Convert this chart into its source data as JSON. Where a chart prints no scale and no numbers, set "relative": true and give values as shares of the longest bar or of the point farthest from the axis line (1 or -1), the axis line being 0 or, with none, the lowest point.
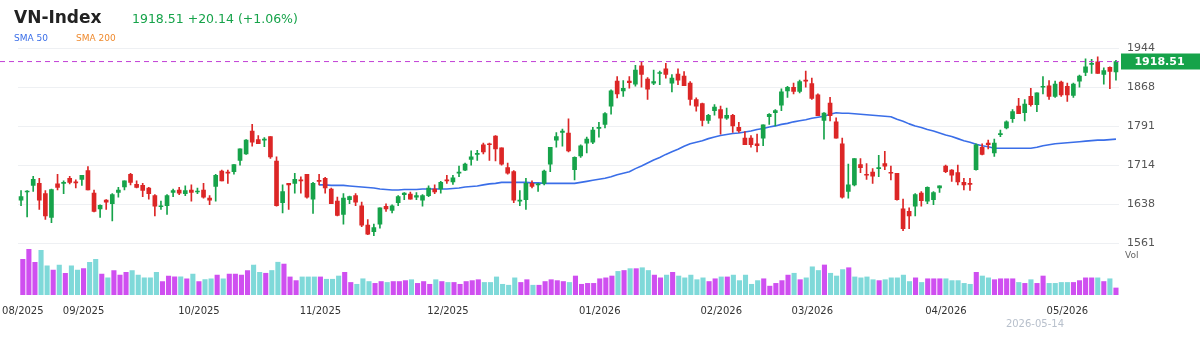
{
  "chart_data": [
    {
      "type": "candlestick",
      "title": "VN-Index",
      "subtitle": "1918.51 +20.14 (+1.06%)",
      "categories": [
        null,
        null,
        null,
        null,
        null,
        null,
        null,
        null,
        null,
        null,
        null,
        null,
        null,
        null,
        null,
        null,
        null,
        null,
        null,
        null,
        null,
        null,
        null,
        null,
        null,
        null,
        null,
        null,
        null,
        null,
        null,
        null,
        null,
        null,
        null,
        null,
        null,
        null,
        null,
        null,
        null,
        null,
        null,
        null,
        null,
        null,
        null,
        null,
        null,
        null,
        null,
        null,
        null,
        null,
        null,
        null,
        null,
        null,
        null,
        null,
        null,
        null,
        null,
        null,
        null,
        null,
        null,
        null,
        null,
        null,
        null,
        null,
        null,
        null,
        null,
        null,
        null,
        null,
        null,
        null,
        null,
        null,
        null,
        null,
        null,
        null,
        null,
        null,
        null,
        null,
        null,
        null,
        null,
        null,
        null,
        null,
        null,
        null,
        null,
        null,
        null,
        null,
        null,
        null,
        null,
        null,
        null,
        null,
        null,
        null,
        null,
        null,
        null,
        null,
        null,
        null,
        null,
        null,
        null,
        null,
        null,
        null,
        null,
        null,
        null,
        null,
        null,
        null,
        null,
        null,
        null,
        null,
        null,
        null,
        null,
        null,
        null,
        null,
        null,
        null,
        null,
        null,
        null,
        null,
        null,
        null,
        null,
        null,
        null,
        null,
        null,
        null,
        null,
        null,
        null,
        null,
        null,
        null,
        null,
        null,
        null,
        null,
        null,
        null,
        null,
        null,
        null,
        null,
        null,
        null,
        null,
        null,
        null,
        null,
        null,
        null,
        null,
        null,
        null,
        null,
        null
      ],
      "ohlc": [
        [
          1646,
          1665,
          1635,
          1653
        ],
        [
          1662,
          1665,
          1613,
          1663
        ],
        [
          1675,
          1693,
          1663,
          1687
        ],
        [
          1679,
          1689,
          1628,
          1646
        ],
        [
          1659,
          1665,
          1608,
          1615
        ],
        [
          1612,
          1668,
          1602,
          1667
        ],
        [
          1678,
          1697,
          1666,
          1671
        ],
        [
          1679,
          1684,
          1659,
          1681
        ],
        [
          1689,
          1693,
          1678,
          1681
        ],
        [
          1681,
          1686,
          1670,
          1680
        ],
        [
          1687,
          1695,
          1675,
          1695
        ],
        [
          1704,
          1712,
          1666,
          1666
        ],
        [
          1660,
          1666,
          1623,
          1624
        ],
        [
          1629,
          1637,
          1612,
          1636
        ],
        [
          1646,
          1647,
          1628,
          1642
        ],
        [
          1639,
          1659,
          1605,
          1657
        ],
        [
          1661,
          1671,
          1652,
          1666
        ],
        [
          1672,
          1684,
          1666,
          1684
        ],
        [
          1697,
          1699,
          1676,
          1681
        ],
        [
          1677,
          1684,
          1670,
          1671
        ],
        [
          1675,
          1679,
          1653,
          1665
        ],
        [
          1670,
          1671,
          1648,
          1659
        ],
        [
          1655,
          1657,
          1615,
          1634
        ],
        [
          1633,
          1644,
          1628,
          1634
        ],
        [
          1635,
          1657,
          1618,
          1655
        ],
        [
          1661,
          1668,
          1653,
          1665
        ],
        [
          1666,
          1671,
          1657,
          1660
        ],
        [
          1659,
          1674,
          1655,
          1665
        ],
        [
          1666,
          1676,
          1644,
          1661
        ],
        [
          1662,
          1670,
          1659,
          1664
        ],
        [
          1666,
          1679,
          1650,
          1652
        ],
        [
          1650,
          1655,
          1637,
          1646
        ],
        [
          1673,
          1697,
          1644,
          1695
        ],
        [
          1703,
          1705,
          1684,
          1684
        ],
        [
          1701,
          1705,
          1679,
          1699
        ],
        [
          1702,
          1716,
          1697,
          1716
        ],
        [
          1724,
          1747,
          1715,
          1747
        ],
        [
          1737,
          1765,
          1736,
          1764
        ],
        [
          1782,
          1795,
          1752,
          1760
        ],
        [
          1765,
          1773,
          1757,
          1757
        ],
        [
          1764,
          1769,
          1751,
          1766
        ],
        [
          1771,
          1771,
          1728,
          1731
        ],
        [
          1723,
          1731,
          1634,
          1635
        ],
        [
          1641,
          1676,
          1621,
          1663
        ],
        [
          1679,
          1679,
          1628,
          1676
        ],
        [
          1679,
          1699,
          1660,
          1687
        ],
        [
          1685,
          1692,
          1660,
          1684
        ],
        [
          1697,
          1697,
          1650,
          1652
        ],
        [
          1648,
          1681,
          1620,
          1679
        ],
        [
          1684,
          1697,
          1676,
          1683
        ],
        [
          1689,
          1691,
          1660,
          1670
        ],
        [
          1668,
          1670,
          1639,
          1639
        ],
        [
          1644,
          1652,
          1615,
          1616
        ],
        [
          1618,
          1659,
          1599,
          1650
        ],
        [
          1647,
          1654,
          1639,
          1653
        ],
        [
          1655,
          1659,
          1635,
          1642
        ],
        [
          1635,
          1642,
          1594,
          1597
        ],
        [
          1597,
          1608,
          1578,
          1579
        ],
        [
          1584,
          1599,
          1576,
          1592
        ],
        [
          1599,
          1631,
          1591,
          1631
        ],
        [
          1634,
          1639,
          1624,
          1629
        ],
        [
          1626,
          1637,
          1621,
          1635
        ],
        [
          1641,
          1655,
          1635,
          1653
        ],
        [
          1657,
          1661,
          1647,
          1660
        ],
        [
          1658,
          1662,
          1648,
          1648
        ],
        [
          1652,
          1661,
          1647,
          1655
        ],
        [
          1646,
          1657,
          1634,
          1655
        ],
        [
          1655,
          1674,
          1653,
          1670
        ],
        [
          1668,
          1676,
          1659,
          1662
        ],
        [
          1668,
          1683,
          1660,
          1681
        ],
        [
          1686,
          1695,
          1679,
          1684
        ],
        [
          1682,
          1695,
          1677,
          1690
        ],
        [
          1699,
          1713,
          1692,
          1701
        ],
        [
          1705,
          1719,
          1704,
          1717
        ],
        [
          1726,
          1743,
          1715,
          1731
        ],
        [
          1736,
          1744,
          1724,
          1737
        ],
        [
          1755,
          1758,
          1737,
          1741
        ],
        [
          1757,
          1758,
          1724,
          1755
        ],
        [
          1772,
          1773,
          1723,
          1747
        ],
        [
          1749,
          1749,
          1715,
          1717
        ],
        [
          1710,
          1719,
          1697,
          1699
        ],
        [
          1702,
          1704,
          1641,
          1646
        ],
        [
          1644,
          1665,
          1635,
          1646
        ],
        [
          1647,
          1689,
          1628,
          1679
        ],
        [
          1679,
          1684,
          1670,
          1673
        ],
        [
          1676,
          1679,
          1663,
          1678
        ],
        [
          1679,
          1705,
          1676,
          1703
        ],
        [
          1717,
          1750,
          1702,
          1750
        ],
        [
          1764,
          1779,
          1750,
          1771
        ],
        [
          1779,
          1786,
          1752,
          1782
        ],
        [
          1778,
          1806,
          1741,
          1743
        ],
        [
          1706,
          1731,
          1686,
          1730
        ],
        [
          1733,
          1755,
          1730,
          1753
        ],
        [
          1758,
          1770,
          1739,
          1766
        ],
        [
          1760,
          1789,
          1757,
          1784
        ],
        [
          1787,
          1799,
          1770,
          1789
        ],
        [
          1795,
          1818,
          1788,
          1816
        ],
        [
          1831,
          1863,
          1815,
          1861
        ],
        [
          1880,
          1889,
          1847,
          1855
        ],
        [
          1861,
          1881,
          1850,
          1866
        ],
        [
          1880,
          1889,
          1866,
          1877
        ],
        [
          1874,
          1911,
          1870,
          1902
        ],
        [
          1910,
          1918,
          1868,
          1893
        ],
        [
          1884,
          1887,
          1844,
          1864
        ],
        [
          1876,
          1902,
          1873,
          1879
        ],
        [
          1895,
          1900,
          1873,
          1897
        ],
        [
          1904,
          1915,
          1886,
          1893
        ],
        [
          1876,
          1893,
          1859,
          1886
        ],
        [
          1894,
          1904,
          1873,
          1882
        ],
        [
          1890,
          1899,
          1871,
          1871
        ],
        [
          1876,
          1879,
          1833,
          1844
        ],
        [
          1844,
          1847,
          1821,
          1831
        ],
        [
          1836,
          1837,
          1792,
          1803
        ],
        [
          1803,
          1815,
          1797,
          1813
        ],
        [
          1822,
          1834,
          1813,
          1829
        ],
        [
          1824,
          1831,
          1776,
          1807
        ],
        [
          1807,
          1827,
          1805,
          1813
        ],
        [
          1813,
          1815,
          1779,
          1792
        ],
        [
          1789,
          1799,
          1779,
          1782
        ],
        [
          1768,
          1781,
          1755,
          1755
        ],
        [
          1768,
          1773,
          1750,
          1755
        ],
        [
          1757,
          1776,
          1741,
          1753
        ],
        [
          1768,
          1794,
          1753,
          1794
        ],
        [
          1810,
          1816,
          1795,
          1815
        ],
        [
          1818,
          1824,
          1792,
          1822
        ],
        [
          1833,
          1865,
          1822,
          1859
        ],
        [
          1861,
          1870,
          1848,
          1868
        ],
        [
          1868,
          1876,
          1855,
          1860
        ],
        [
          1860,
          1882,
          1857,
          1879
        ],
        [
          1882,
          1900,
          1868,
          1880
        ],
        [
          1875,
          1886,
          1844,
          1846
        ],
        [
          1853,
          1855,
          1812,
          1812
        ],
        [
          1803,
          1818,
          1766,
          1817
        ],
        [
          1837,
          1848,
          1802,
          1812
        ],
        [
          1800,
          1808,
          1768,
          1768
        ],
        [
          1757,
          1768,
          1650,
          1652
        ],
        [
          1663,
          1717,
          1650,
          1676
        ],
        [
          1676,
          1728,
          1674,
          1728
        ],
        [
          1716,
          1728,
          1700,
          1710
        ],
        [
          1697,
          1718,
          1687,
          1695
        ],
        [
          1701,
          1708,
          1679,
          1693
        ],
        [
          1708,
          1734,
          1692,
          1710
        ],
        [
          1718,
          1742,
          1706,
          1713
        ],
        [
          1700,
          1713,
          1686,
          1699
        ],
        [
          1699,
          1699,
          1646,
          1647
        ],
        [
          1629,
          1648,
          1586,
          1590
        ],
        [
          1624,
          1631,
          1590,
          1615
        ],
        [
          1634,
          1659,
          1615,
          1657
        ],
        [
          1660,
          1663,
          1634,
          1645
        ],
        [
          1644,
          1672,
          1639,
          1671
        ],
        [
          1647,
          1663,
          1637,
          1661
        ],
        [
          1670,
          1674,
          1661,
          1674
        ],
        [
          1713,
          1715,
          1700,
          1702
        ],
        [
          1705,
          1706,
          1683,
          1695
        ],
        [
          1700,
          1715,
          1676,
          1682
        ],
        [
          1681,
          1689,
          1666,
          1676
        ],
        [
          1678,
          1689,
          1665,
          1677
        ],
        [
          1706,
          1757,
          1705,
          1755
        ],
        [
          1750,
          1757,
          1735,
          1736
        ],
        [
          1758,
          1764,
          1747,
          1755
        ],
        [
          1739,
          1766,
          1732,
          1758
        ],
        [
          1775,
          1784,
          1771,
          1776
        ],
        [
          1788,
          1802,
          1786,
          1800
        ],
        [
          1806,
          1824,
          1799,
          1820
        ],
        [
          1831,
          1846,
          1816,
          1816
        ],
        [
          1818,
          1844,
          1802,
          1835
        ],
        [
          1850,
          1866,
          1831,
          1834
        ],
        [
          1834,
          1857,
          1820,
          1857
        ],
        [
          1868,
          1889,
          1855,
          1870
        ],
        [
          1871,
          1881,
          1844,
          1850
        ],
        [
          1850,
          1880,
          1848,
          1874
        ],
        [
          1878,
          1880,
          1850,
          1853
        ],
        [
          1870,
          1876,
          1840,
          1853
        ],
        [
          1852,
          1876,
          1848,
          1874
        ],
        [
          1880,
          1892,
          1868,
          1890
        ],
        [
          1897,
          1924,
          1891,
          1908
        ],
        [
          1913,
          1923,
          1895,
          1915
        ],
        [
          1918,
          1928,
          1895,
          1895
        ],
        [
          1893,
          1906,
          1874,
          1901
        ],
        [
          1907,
          1908,
          1865,
          1899
        ],
        [
          1898,
          1921,
          1882,
          1918.51
        ]
      ],
      "series": [
        {
          "name": "SMA 50",
          "type": "line",
          "color": "#3a6ee8",
          "values": [
            null,
            null,
            null,
            null,
            null,
            null,
            null,
            null,
            null,
            null,
            null,
            null,
            null,
            null,
            null,
            null,
            null,
            null,
            null,
            null,
            null,
            null,
            null,
            null,
            null,
            null,
            null,
            null,
            null,
            null,
            null,
            null,
            null,
            null,
            null,
            null,
            null,
            null,
            null,
            null,
            null,
            null,
            null,
            null,
            null,
            null,
            null,
            null,
            null,
            1676,
            1676,
            1675,
            1675,
            1675,
            1674,
            1673,
            1672,
            1671,
            1670,
            1668,
            1667,
            1666,
            1666,
            1667,
            1667,
            1667,
            1668,
            1668,
            1668,
            1668,
            1668,
            1669,
            1670,
            1672,
            1673,
            1674,
            1676,
            1678,
            1679,
            1681,
            1681,
            1681,
            1681,
            1681,
            1680,
            1680,
            1679,
            1679,
            1679,
            1679,
            1679,
            1679,
            1681,
            1683,
            1685,
            1687,
            1689,
            1692,
            1696,
            1699,
            1702,
            1708,
            1713,
            1719,
            1725,
            1730,
            1736,
            1741,
            1746,
            1752,
            1757,
            1760,
            1763,
            1767,
            1770,
            1773,
            1775,
            1777,
            1778,
            1780,
            1782,
            1785,
            1787,
            1790,
            1792,
            1795,
            1797,
            1800,
            1802,
            1804,
            1807,
            1809,
            1811,
            1815,
            1818,
            1817,
            1817,
            1816,
            1815,
            1814,
            1813,
            1812,
            1811,
            1810,
            1805,
            1801,
            1796,
            1792,
            1789,
            1785,
            1782,
            1778,
            1774,
            1771,
            1767,
            1763,
            1760,
            1756,
            1753,
            1751,
            1748,
            1748,
            1748,
            1748,
            1748,
            1748,
            1748,
            1750,
            1753,
            1755,
            1757,
            1758,
            1759,
            1760,
            1761,
            1762,
            1763,
            1764,
            1764,
            1765,
            1766
          ]
        },
        {
          "name": "SMA 200",
          "type": "line",
          "color": "#ef8a2e",
          "values": [
            null,
            null,
            null,
            null,
            null,
            null,
            null,
            null,
            null,
            null,
            null,
            null,
            null,
            null,
            null,
            null,
            null,
            null,
            null,
            null,
            null,
            null,
            null,
            null,
            null,
            null,
            null,
            null,
            null,
            null,
            null,
            null,
            null,
            null,
            null,
            null,
            null,
            null,
            null,
            null,
            null,
            null,
            null,
            null,
            null,
            null,
            null,
            null,
            null,
            null,
            null,
            null,
            null,
            null,
            null,
            null,
            null,
            null,
            null,
            null,
            null,
            null,
            null,
            null,
            null,
            null,
            null,
            null,
            null,
            null,
            null,
            null,
            null,
            null,
            null,
            null,
            null,
            null,
            null,
            null,
            null,
            null,
            null,
            null,
            null,
            null,
            null,
            null,
            null,
            null,
            null,
            null,
            null,
            null,
            null,
            null,
            null,
            null,
            null,
            null,
            null,
            null,
            null,
            null,
            null,
            null,
            null,
            null,
            null,
            null,
            null,
            null,
            null,
            null,
            null,
            null,
            null,
            null,
            null,
            null,
            null,
            null,
            null,
            null,
            null,
            null,
            null,
            null,
            null,
            null,
            null,
            null,
            null,
            null,
            null,
            null,
            null,
            null,
            null,
            null,
            null,
            null,
            null,
            null,
            null,
            null,
            null,
            null,
            null,
            null,
            null,
            null,
            null,
            null,
            null,
            null,
            null,
            null,
            null,
            null,
            null,
            null,
            null,
            null,
            null,
            null,
            null,
            null,
            null,
            null,
            null,
            null,
            null,
            null,
            null,
            null,
            null,
            null,
            null,
            null,
            null
          ]
        }
      ],
      "ylim": [
        1561,
        1944
      ],
      "yticks": [
        1561,
        1638,
        1714,
        1791,
        1868,
        1944
      ],
      "grid": "y",
      "legend": "top left",
      "marker": "none",
      "tick_labels": "y",
      "ref_lines": [
        {
          "axis": "y",
          "value": 1918.51,
          "label": "1918.51",
          "color": "#c23fd6",
          "line_style": "dashed"
        }
      ]
    },
    {
      "type": "bar",
      "relative": true,
      "ylabel": "Vol",
      "tick_labels": "x",
      "annotations": [
        "2026-05-14"
      ],
      "categories": [
        "08/2025",
        null,
        null,
        null,
        null,
        null,
        null,
        null,
        null,
        null,
        "09/2025",
        null,
        null,
        null,
        null,
        null,
        null,
        null,
        null,
        null,
        null,
        null,
        null,
        null,
        null,
        null,
        null,
        null,
        null,
        "10/2025",
        null,
        null,
        null,
        null,
        null,
        null,
        null,
        null,
        null,
        null,
        null,
        null,
        null,
        null,
        null,
        null,
        null,
        null,
        null,
        "11/2025",
        null,
        null,
        null,
        null,
        null,
        null,
        null,
        null,
        null,
        null,
        null,
        null,
        null,
        null,
        null,
        null,
        null,
        null,
        null,
        null,
        "12/2025",
        null,
        null,
        null,
        null,
        null,
        null,
        null,
        null,
        null,
        null,
        null,
        null,
        null,
        null,
        null,
        null,
        null,
        null,
        null,
        null,
        null,
        null,
        null,
        null,
        "01/2026",
        null,
        null,
        null,
        null,
        null,
        null,
        null,
        null,
        null,
        null,
        null,
        null,
        null,
        null,
        null,
        null,
        null,
        null,
        null,
        "02/2026",
        null,
        null,
        null,
        null,
        null,
        null,
        null,
        null,
        null,
        null,
        null,
        null,
        null,
        null,
        "03/2026",
        null,
        null,
        null,
        null,
        null,
        null,
        null,
        null,
        null,
        null,
        null,
        null,
        null,
        null,
        null,
        null,
        null,
        null,
        null,
        null,
        null,
        "04/2026",
        null,
        null,
        null,
        null,
        null,
        null,
        null,
        null,
        null,
        null,
        null,
        null,
        null,
        null,
        null,
        null,
        null,
        null,
        null,
        "05/2026",
        null,
        null,
        null,
        null,
        null,
        null,
        null,
        null
      ],
      "values": [
        0.78,
        1,
        0.72,
        0.98,
        0.64,
        0.55,
        0.66,
        0.48,
        0.64,
        0.55,
        0.58,
        0.72,
        0.78,
        0.46,
        0.38,
        0.54,
        0.44,
        0.5,
        0.54,
        0.44,
        0.38,
        0.38,
        0.5,
        0.3,
        0.42,
        0.4,
        0.4,
        0.36,
        0.46,
        0.3,
        0.34,
        0.36,
        0.44,
        0.36,
        0.46,
        0.46,
        0.44,
        0.54,
        0.66,
        0.5,
        0.48,
        0.54,
        0.72,
        0.68,
        0.4,
        0.32,
        0.4,
        0.4,
        0.4,
        0.4,
        0.35,
        0.35,
        0.42,
        0.5,
        0.28,
        0.24,
        0.36,
        0.3,
        0.26,
        0.3,
        0.28,
        0.3,
        0.3,
        0.32,
        0.34,
        0.26,
        0.3,
        0.24,
        0.34,
        0.3,
        0.28,
        0.28,
        0.24,
        0.3,
        0.32,
        0.34,
        0.28,
        0.28,
        0.4,
        0.24,
        0.22,
        0.38,
        0.28,
        0.34,
        0.22,
        0.22,
        0.3,
        0.34,
        0.32,
        0.3,
        0.28,
        0.42,
        0.24,
        0.26,
        0.26,
        0.36,
        0.38,
        0.42,
        0.52,
        0.54,
        0.58,
        0.58,
        0.6,
        0.54,
        0.44,
        0.38,
        0.44,
        0.5,
        0.42,
        0.38,
        0.44,
        0.34,
        0.38,
        0.3,
        0.36,
        0.4,
        0.4,
        0.44,
        0.32,
        0.44,
        0.24,
        0.32,
        0.36,
        0.2,
        0.26,
        0.32,
        0.44,
        0.48,
        0.34,
        0.38,
        0.62,
        0.54,
        0.66,
        0.48,
        0.42,
        0.56,
        0.6,
        0.4,
        0.38,
        0.4,
        0.34,
        0.32,
        0.34,
        0.38,
        0.38,
        0.44,
        0.3,
        0.38,
        0.28,
        0.36,
        0.36,
        0.36,
        0.36,
        0.32,
        0.32,
        0.26,
        0.24,
        0.5,
        0.42,
        0.38,
        0.34,
        0.36,
        0.36,
        0.36,
        0.28,
        0.26,
        0.34,
        0.26,
        0.42,
        0.26,
        0.26,
        0.28,
        0.28,
        0.28,
        0.32,
        0.38,
        0.38,
        0.38,
        0.3,
        0.36,
        0.16
      ],
      "colors": [
        "#cf4ff0",
        "#cf4ff0",
        "#cf4ff0",
        "#7fd9d9",
        "#7fd9d9",
        "#cf4ff0",
        "#7fd9d9",
        "#cf4ff0",
        "#7fd9d9",
        "#7fd9d9",
        "#cf4ff0",
        "#7fd9d9",
        "#7fd9d9",
        "#cf4ff0",
        "#7fd9d9",
        "#cf4ff0",
        "#cf4ff0",
        "#cf4ff0",
        "#7fd9d9",
        "#7fd9d9",
        "#7fd9d9",
        "#7fd9d9",
        "#7fd9d9",
        "#cf4ff0",
        "#cf4ff0",
        "#cf4ff0",
        "#7fd9d9",
        "#cf4ff0",
        "#7fd9d9",
        "#cf4ff0",
        "#7fd9d9",
        "#7fd9d9",
        "#cf4ff0",
        "#7fd9d9",
        "#cf4ff0",
        "#cf4ff0",
        "#cf4ff0",
        "#cf4ff0",
        "#7fd9d9",
        "#7fd9d9",
        "#cf4ff0",
        "#7fd9d9",
        "#7fd9d9",
        "#cf4ff0",
        "#cf4ff0",
        "#cf4ff0",
        "#7fd9d9",
        "#7fd9d9",
        "#7fd9d9",
        "#cf4ff0",
        "#7fd9d9",
        "#7fd9d9",
        "#7fd9d9",
        "#cf4ff0",
        "#cf4ff0",
        "#7fd9d9",
        "#7fd9d9",
        "#7fd9d9",
        "#cf4ff0",
        "#cf4ff0",
        "#7fd9d9",
        "#cf4ff0",
        "#cf4ff0",
        "#cf4ff0",
        "#7fd9d9",
        "#cf4ff0",
        "#cf4ff0",
        "#cf4ff0",
        "#7fd9d9",
        "#cf4ff0",
        "#7fd9d9",
        "#cf4ff0",
        "#cf4ff0",
        "#cf4ff0",
        "#cf4ff0",
        "#cf4ff0",
        "#7fd9d9",
        "#7fd9d9",
        "#7fd9d9",
        "#7fd9d9",
        "#7fd9d9",
        "#7fd9d9",
        "#cf4ff0",
        "#cf4ff0",
        "#7fd9d9",
        "#cf4ff0",
        "#cf4ff0",
        "#cf4ff0",
        "#cf4ff0",
        "#cf4ff0",
        "#7fd9d9",
        "#cf4ff0",
        "#cf4ff0",
        "#cf4ff0",
        "#cf4ff0",
        "#cf4ff0",
        "#cf4ff0",
        "#cf4ff0",
        "#7fd9d9",
        "#cf4ff0",
        "#7fd9d9",
        "#cf4ff0",
        "#7fd9d9",
        "#7fd9d9",
        "#cf4ff0",
        "#cf4ff0",
        "#7fd9d9",
        "#cf4ff0",
        "#7fd9d9",
        "#7fd9d9",
        "#7fd9d9",
        "#7fd9d9",
        "#7fd9d9",
        "#cf4ff0",
        "#cf4ff0",
        "#7fd9d9",
        "#cf4ff0",
        "#7fd9d9",
        "#7fd9d9",
        "#7fd9d9",
        "#7fd9d9",
        "#7fd9d9",
        "#cf4ff0",
        "#cf4ff0",
        "#cf4ff0",
        "#cf4ff0",
        "#cf4ff0",
        "#7fd9d9",
        "#cf4ff0",
        "#7fd9d9",
        "#7fd9d9",
        "#7fd9d9",
        "#cf4ff0",
        "#7fd9d9",
        "#7fd9d9",
        "#7fd9d9",
        "#cf4ff0",
        "#7fd9d9",
        "#7fd9d9",
        "#7fd9d9",
        "#7fd9d9",
        "#cf4ff0",
        "#7fd9d9",
        "#7fd9d9",
        "#7fd9d9",
        "#7fd9d9",
        "#7fd9d9",
        "#cf4ff0",
        "#7fd9d9",
        "#cf4ff0",
        "#cf4ff0",
        "#cf4ff0",
        "#7fd9d9",
        "#7fd9d9",
        "#7fd9d9",
        "#7fd9d9",
        "#7fd9d9",
        "#cf4ff0",
        "#7fd9d9",
        "#7fd9d9",
        "#cf4ff0",
        "#cf4ff0",
        "#cf4ff0",
        "#cf4ff0",
        "#7fd9d9",
        "#cf4ff0",
        "#7fd9d9",
        "#cf4ff0",
        "#cf4ff0",
        "#7fd9d9",
        "#7fd9d9",
        "#7fd9d9",
        "#7fd9d9",
        "#cf4ff0",
        "#cf4ff0",
        "#cf4ff0",
        "#cf4ff0",
        "#7fd9d9",
        "#cf4ff0",
        "#7fd9d9",
        "#cf4ff0"
      ]
    }
  ]
}
